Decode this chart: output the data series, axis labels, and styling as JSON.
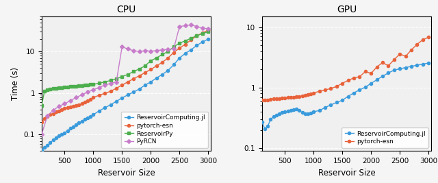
{
  "cpu_title": "CPU",
  "gpu_title": "GPU",
  "xlabel": "Reservoir Size",
  "ylabel": "Time (s)",
  "cpu_xlim": [
    100,
    3050
  ],
  "cpu_ylim": [
    0.04,
    70
  ],
  "gpu_xlim": [
    100,
    3050
  ],
  "gpu_ylim": [
    0.09,
    15
  ],
  "cpu_rc_x": [
    100,
    150,
    200,
    250,
    300,
    350,
    400,
    450,
    500,
    550,
    600,
    650,
    700,
    750,
    800,
    850,
    900,
    950,
    1000,
    1100,
    1200,
    1300,
    1400,
    1500,
    1600,
    1700,
    1800,
    1900,
    2000,
    2100,
    2200,
    2300,
    2400,
    2500,
    2600,
    2700,
    2800,
    2900,
    3000
  ],
  "cpu_rc_y": [
    0.042,
    0.048,
    0.055,
    0.063,
    0.073,
    0.083,
    0.092,
    0.1,
    0.11,
    0.12,
    0.14,
    0.155,
    0.17,
    0.19,
    0.21,
    0.23,
    0.25,
    0.27,
    0.3,
    0.37,
    0.44,
    0.52,
    0.63,
    0.76,
    0.9,
    1.05,
    1.25,
    1.55,
    1.85,
    2.3,
    2.8,
    3.5,
    4.8,
    7.0,
    9.0,
    11.0,
    14,
    17,
    20
  ],
  "cpu_pytorch_x": [
    100,
    150,
    200,
    250,
    300,
    350,
    400,
    450,
    500,
    550,
    600,
    650,
    700,
    750,
    800,
    850,
    900,
    950,
    1000,
    1100,
    1200,
    1300,
    1400,
    1500,
    1600,
    1700,
    1800,
    1900,
    2000,
    2100,
    2200,
    2300,
    2400,
    2500,
    2600,
    2700,
    2800,
    2900,
    3000
  ],
  "cpu_pytorch_y": [
    0.2,
    0.24,
    0.27,
    0.3,
    0.32,
    0.35,
    0.37,
    0.4,
    0.42,
    0.44,
    0.46,
    0.48,
    0.5,
    0.52,
    0.56,
    0.6,
    0.65,
    0.7,
    0.78,
    0.88,
    0.98,
    1.1,
    1.3,
    1.55,
    1.85,
    2.2,
    2.6,
    3.1,
    3.7,
    4.5,
    5.5,
    7.0,
    9.5,
    12,
    15,
    19,
    24,
    28,
    33
  ],
  "cpu_reservoirpy_x": [
    100,
    150,
    200,
    250,
    300,
    350,
    400,
    450,
    500,
    550,
    600,
    650,
    700,
    750,
    800,
    850,
    900,
    950,
    1000,
    1100,
    1200,
    1300,
    1400,
    1500,
    1600,
    1700,
    1800,
    1900,
    2000,
    2100,
    2200,
    2300,
    2400,
    2500,
    2600,
    2700,
    2800,
    2900,
    3000
  ],
  "cpu_reservoirpy_y": [
    0.5,
    1.1,
    1.2,
    1.25,
    1.28,
    1.3,
    1.32,
    1.35,
    1.37,
    1.4,
    1.42,
    1.45,
    1.47,
    1.5,
    1.52,
    1.55,
    1.57,
    1.6,
    1.62,
    1.72,
    1.85,
    2.0,
    2.2,
    2.5,
    2.8,
    3.3,
    3.8,
    4.5,
    6.0,
    7.0,
    8.5,
    10,
    13,
    16,
    18,
    21,
    24,
    27,
    30
  ],
  "cpu_pyrcn_x": [
    100,
    200,
    300,
    400,
    500,
    600,
    700,
    800,
    900,
    1000,
    1100,
    1200,
    1300,
    1400,
    1500,
    1600,
    1700,
    1800,
    1900,
    2000,
    2100,
    2200,
    2300,
    2400,
    2500,
    2600,
    2700,
    2800,
    2900,
    3000
  ],
  "cpu_pyrcn_y": [
    0.1,
    0.28,
    0.38,
    0.48,
    0.55,
    0.65,
    0.78,
    0.9,
    1.05,
    1.2,
    1.35,
    1.55,
    1.7,
    1.85,
    13.0,
    11.5,
    10.5,
    10.0,
    10.5,
    10.2,
    10.5,
    11.0,
    11.2,
    11.8,
    40,
    42,
    44,
    40,
    37,
    35
  ],
  "gpu_rc_x": [
    100,
    150,
    200,
    250,
    300,
    350,
    400,
    450,
    500,
    550,
    600,
    650,
    700,
    750,
    800,
    850,
    900,
    950,
    1000,
    1100,
    1200,
    1300,
    1400,
    1500,
    1600,
    1700,
    1800,
    1900,
    2000,
    2100,
    2200,
    2300,
    2400,
    2500,
    2600,
    2700,
    2800,
    2900,
    3000
  ],
  "gpu_rc_y": [
    0.27,
    0.21,
    0.23,
    0.3,
    0.33,
    0.35,
    0.37,
    0.39,
    0.4,
    0.41,
    0.42,
    0.43,
    0.45,
    0.42,
    0.39,
    0.37,
    0.37,
    0.38,
    0.4,
    0.42,
    0.47,
    0.52,
    0.57,
    0.62,
    0.72,
    0.82,
    0.92,
    1.02,
    1.18,
    1.35,
    1.55,
    1.75,
    1.95,
    2.05,
    2.15,
    2.25,
    2.35,
    2.45,
    2.55
  ],
  "gpu_pytorch_x": [
    100,
    150,
    200,
    250,
    300,
    350,
    400,
    450,
    500,
    550,
    600,
    650,
    700,
    750,
    800,
    850,
    900,
    950,
    1000,
    1100,
    1200,
    1300,
    1400,
    1500,
    1600,
    1700,
    1800,
    1900,
    2000,
    2100,
    2200,
    2300,
    2400,
    2500,
    2600,
    2700,
    2800,
    2900,
    3000
  ],
  "gpu_pytorch_y": [
    0.62,
    0.63,
    0.63,
    0.64,
    0.65,
    0.65,
    0.66,
    0.67,
    0.68,
    0.69,
    0.7,
    0.7,
    0.71,
    0.72,
    0.73,
    0.74,
    0.76,
    0.78,
    0.82,
    0.87,
    0.92,
    0.97,
    1.05,
    1.18,
    1.32,
    1.45,
    1.52,
    1.85,
    1.72,
    2.2,
    2.6,
    2.3,
    2.9,
    3.6,
    3.3,
    4.2,
    5.2,
    6.2,
    6.8
  ],
  "color_rc": "#3a9bdc",
  "color_pytorch": "#e8623a",
  "color_reservoirpy": "#4cae4c",
  "color_pyrcn": "#c77dca",
  "bg_color": "#f0f0f0",
  "legend_fontsize": 6.5,
  "title_fontsize": 10,
  "axis_label_fontsize": 8.5,
  "tick_fontsize": 7.5
}
